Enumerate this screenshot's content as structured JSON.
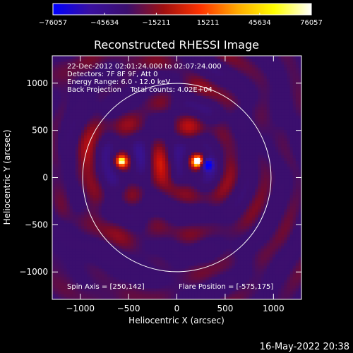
{
  "chart_data": {
    "type": "heatmap",
    "title": "Reconstructed RHESSI Image",
    "xlabel": "Heliocentric X (arcsec)",
    "ylabel": "Heliocentric Y (arcsec)",
    "xlim": [
      -1290,
      1290
    ],
    "ylim": [
      -1290,
      1290
    ],
    "x_ticks": [
      -1000,
      -500,
      0,
      500,
      1000
    ],
    "y_ticks": [
      -1000,
      -500,
      0,
      500,
      1000
    ],
    "x_tick_labels": [
      "−1000",
      "−500",
      "0",
      "500",
      "1000"
    ],
    "y_tick_labels": [
      "−1000",
      "−500",
      "0",
      "500",
      "1000"
    ],
    "colorbar": {
      "min": -76057,
      "max": 76057,
      "ticks": [
        -76057,
        -45634,
        -15211,
        15211,
        45634,
        76057
      ],
      "tick_labels": [
        "−76057",
        "−45634",
        "−15211",
        "15211",
        "45634",
        "76057"
      ],
      "colors": [
        "#0000ff",
        "#3a10a0",
        "#3b0f6e",
        "#a01010",
        "#ff3300",
        "#ffaa00",
        "#ffff00",
        "#ffffff"
      ]
    },
    "solar_limb_radius": 975,
    "sources": [
      {
        "name": "bright",
        "x": 220,
        "y": 175,
        "value": 76057
      },
      {
        "name": "secondary",
        "x": -575,
        "y": 175,
        "value": 60000
      },
      {
        "name": "negative",
        "x": 310,
        "y": 140,
        "value": -76057
      }
    ],
    "annotations": [
      "22-Dec-2012 02:01:24.000 to 02:07:24.000",
      "Detectors: 7F 8F 9F, Att 0",
      "Energy Range: 6.0 - 12.0 keV",
      "Back Projection    Total counts: 4.02E+04"
    ],
    "spin_axis": "Spin Axis = [250,142]",
    "flare_position": "Flare Position = [-575,175]"
  },
  "footer": {
    "timestamp": "16-May-2022 20:38"
  }
}
